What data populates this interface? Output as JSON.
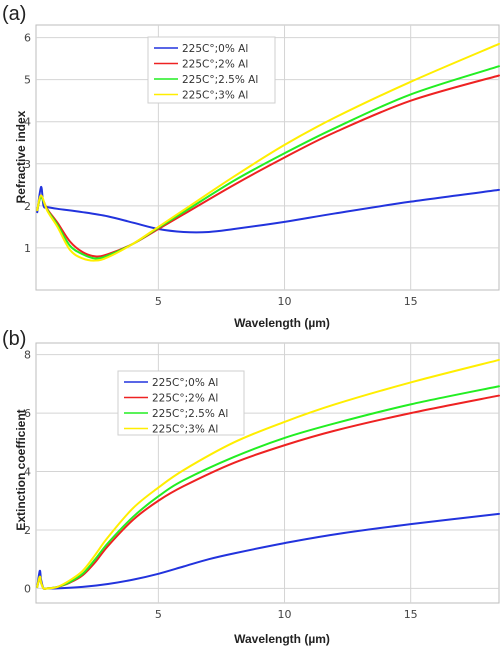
{
  "chart_data": [
    {
      "panel_label": "(a)",
      "type": "line",
      "title": "",
      "xlabel": "Wavelength (µm)",
      "ylabel": "Refractive index",
      "xlim": [
        0.15,
        18.5
      ],
      "ylim": [
        0,
        6.3
      ],
      "xticks": [
        5,
        10,
        15
      ],
      "yticks": [
        1,
        2,
        3,
        4,
        5,
        6
      ],
      "grid": true,
      "legend_position": "top-center",
      "series": [
        {
          "name": "225C°;0% Al",
          "color": "#2233dd",
          "x": [
            0.2,
            0.35,
            0.45,
            0.6,
            1.0,
            2.0,
            3.0,
            4.0,
            5.0,
            6.0,
            7.0,
            8.0,
            10.0,
            12.0,
            15.0,
            18.5
          ],
          "y": [
            1.85,
            2.45,
            2.0,
            1.97,
            1.93,
            1.85,
            1.75,
            1.6,
            1.45,
            1.38,
            1.38,
            1.45,
            1.62,
            1.82,
            2.1,
            2.38
          ]
        },
        {
          "name": "225C°;2% Al",
          "color": "#ee2222",
          "x": [
            0.2,
            0.35,
            0.6,
            1.0,
            1.5,
            2.0,
            2.5,
            3.0,
            4.0,
            5.0,
            6.0,
            8.0,
            10.0,
            12.0,
            15.0,
            18.5
          ],
          "y": [
            1.9,
            2.2,
            1.92,
            1.6,
            1.15,
            0.9,
            0.8,
            0.85,
            1.1,
            1.45,
            1.8,
            2.5,
            3.15,
            3.75,
            4.5,
            5.1
          ]
        },
        {
          "name": "225C°;2.5% Al",
          "color": "#22ee22",
          "x": [
            0.2,
            0.35,
            0.6,
            1.0,
            1.5,
            2.0,
            2.5,
            3.0,
            4.0,
            5.0,
            6.0,
            8.0,
            10.0,
            12.0,
            15.0,
            18.5
          ],
          "y": [
            1.9,
            2.2,
            1.9,
            1.55,
            1.05,
            0.85,
            0.75,
            0.82,
            1.1,
            1.48,
            1.85,
            2.6,
            3.25,
            3.85,
            4.65,
            5.32
          ]
        },
        {
          "name": "225C°;3% Al",
          "color": "#ffee00",
          "x": [
            0.2,
            0.35,
            0.6,
            1.0,
            1.5,
            2.0,
            2.5,
            3.0,
            4.0,
            5.0,
            6.0,
            8.0,
            10.0,
            12.0,
            15.0,
            18.5
          ],
          "y": [
            1.9,
            2.25,
            1.88,
            1.5,
            0.95,
            0.75,
            0.7,
            0.78,
            1.1,
            1.5,
            1.9,
            2.7,
            3.45,
            4.1,
            4.95,
            5.85
          ]
        }
      ]
    },
    {
      "panel_label": "(b)",
      "type": "line",
      "title": "",
      "xlabel": "Wavelength (µm)",
      "ylabel": "Extinction coefficient",
      "xlim": [
        0.15,
        18.5
      ],
      "ylim": [
        -0.5,
        8.4
      ],
      "xticks": [
        5,
        10,
        15
      ],
      "yticks": [
        0,
        2,
        4,
        6,
        8
      ],
      "grid": true,
      "legend_position": "top-left",
      "series": [
        {
          "name": "225C°;0% Al",
          "color": "#2233dd",
          "x": [
            0.2,
            0.3,
            0.35,
            0.45,
            0.6,
            1.0,
            2.0,
            3.0,
            4.0,
            5.0,
            6.0,
            7.0,
            8.0,
            10.0,
            12.0,
            15.0,
            18.5
          ],
          "y": [
            0.05,
            0.6,
            0.3,
            0.0,
            0.0,
            0.0,
            0.05,
            0.15,
            0.3,
            0.5,
            0.75,
            1.0,
            1.2,
            1.55,
            1.85,
            2.2,
            2.55
          ]
        },
        {
          "name": "225C°;2% Al",
          "color": "#ee2222",
          "x": [
            0.2,
            0.3,
            0.35,
            0.45,
            0.6,
            1.0,
            1.5,
            2.0,
            2.5,
            3.0,
            4.0,
            5.0,
            6.0,
            8.0,
            10.0,
            12.0,
            15.0,
            18.5
          ],
          "y": [
            0.05,
            0.4,
            0.2,
            0.0,
            0.0,
            0.05,
            0.2,
            0.45,
            0.9,
            1.45,
            2.35,
            3.0,
            3.5,
            4.3,
            4.9,
            5.4,
            6.0,
            6.6
          ]
        },
        {
          "name": "225C°;2.5% Al",
          "color": "#22ee22",
          "x": [
            0.2,
            0.3,
            0.35,
            0.45,
            0.6,
            1.0,
            1.5,
            2.0,
            2.5,
            3.0,
            4.0,
            5.0,
            6.0,
            8.0,
            10.0,
            12.0,
            15.0,
            18.5
          ],
          "y": [
            0.05,
            0.4,
            0.2,
            0.0,
            0.0,
            0.05,
            0.22,
            0.5,
            1.0,
            1.55,
            2.45,
            3.15,
            3.7,
            4.5,
            5.15,
            5.65,
            6.3,
            6.92
          ]
        },
        {
          "name": "225C°;3% Al",
          "color": "#ffee00",
          "x": [
            0.2,
            0.3,
            0.35,
            0.45,
            0.6,
            1.0,
            1.5,
            2.0,
            2.5,
            3.0,
            4.0,
            5.0,
            6.0,
            8.0,
            10.0,
            12.0,
            15.0,
            18.5
          ],
          "y": [
            0.05,
            0.4,
            0.2,
            0.0,
            0.0,
            0.05,
            0.28,
            0.6,
            1.15,
            1.75,
            2.75,
            3.45,
            4.05,
            5.0,
            5.7,
            6.3,
            7.05,
            7.82
          ]
        }
      ]
    }
  ]
}
